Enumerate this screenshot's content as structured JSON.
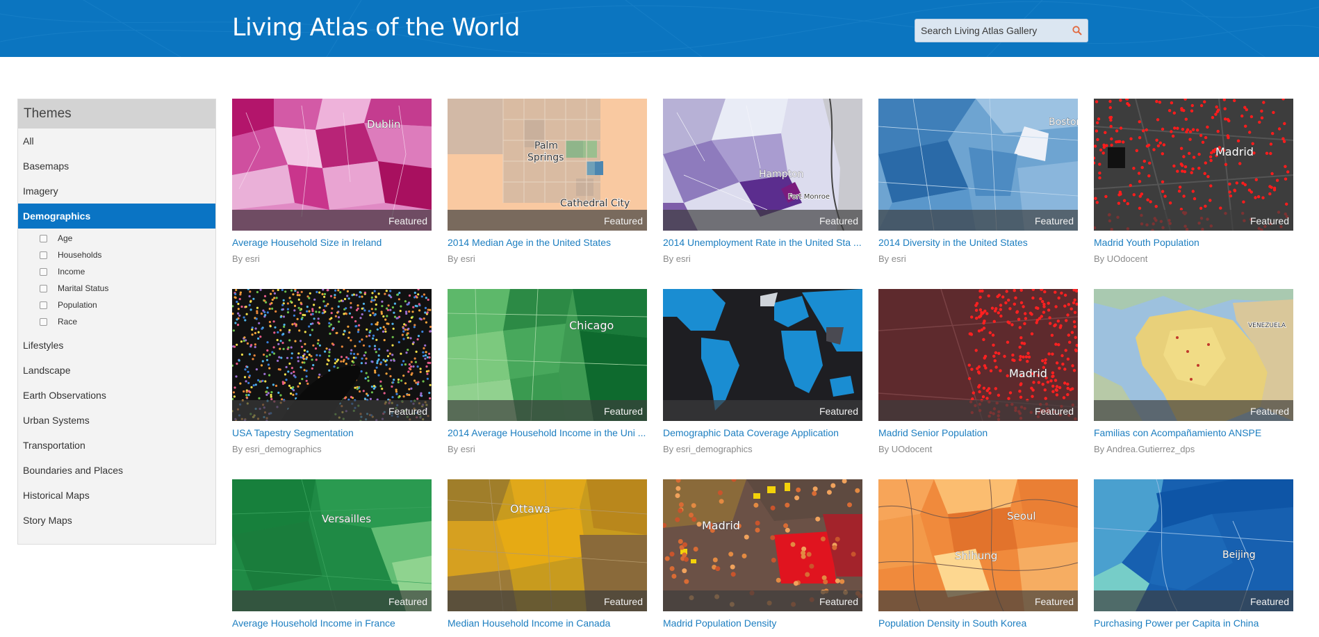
{
  "header": {
    "title": "Living Atlas of the World",
    "search_placeholder": "Search Living Atlas Gallery",
    "search_icon": "search-icon",
    "background_color": "#0b75c0"
  },
  "sidebar": {
    "title": "Themes",
    "items_before": [
      {
        "label": "All"
      },
      {
        "label": "Basemaps"
      },
      {
        "label": "Imagery"
      },
      {
        "label": "Demographics",
        "active": true
      }
    ],
    "sub_items": [
      {
        "label": "Age"
      },
      {
        "label": "Households"
      },
      {
        "label": "Income"
      },
      {
        "label": "Marital Status"
      },
      {
        "label": "Population"
      },
      {
        "label": "Race"
      }
    ],
    "items_after": [
      {
        "label": "Lifestyles"
      },
      {
        "label": "Landscape"
      },
      {
        "label": "Earth Observations"
      },
      {
        "label": "Urban Systems"
      },
      {
        "label": "Transportation"
      },
      {
        "label": "Boundaries and Places"
      },
      {
        "label": "Historical Maps"
      },
      {
        "label": "Story Maps"
      }
    ],
    "active_color": "#0a74c4"
  },
  "gallery": {
    "featured_label": "Featured",
    "by_prefix": "By",
    "items": [
      {
        "title": "Average Household Size in Ireland",
        "author": "esri",
        "map_labels": [
          "Dublin"
        ]
      },
      {
        "title": "2014 Median Age in the United States",
        "author": "esri",
        "map_labels": [
          "Palm",
          "Springs",
          "Cathedral City"
        ]
      },
      {
        "title": "2014 Unemployment Rate in the United Sta ...",
        "author": "esri",
        "map_labels": [
          "Hampton",
          "Fort Monroe"
        ]
      },
      {
        "title": "2014 Diversity in the United States",
        "author": "esri",
        "map_labels": [
          "Boston"
        ]
      },
      {
        "title": "Madrid Youth Population",
        "author": "UOdocent",
        "map_labels": [
          "Madrid"
        ]
      },
      {
        "title": "USA Tapestry Segmentation",
        "author": "esri_demographics",
        "map_labels": []
      },
      {
        "title": "2014 Average Household Income in the Uni ...",
        "author": "esri",
        "map_labels": [
          "Chicago"
        ]
      },
      {
        "title": "Demographic Data Coverage Application",
        "author": "esri_demographics",
        "map_labels": []
      },
      {
        "title": "Madrid Senior Population",
        "author": "UOdocent",
        "map_labels": [
          "Madrid"
        ]
      },
      {
        "title": "Familias con Acompañamiento ANSPE",
        "author": "Andrea.Gutierrez_dps",
        "map_labels": [
          "VENEZUELA"
        ]
      },
      {
        "title": "Average Household Income in France",
        "author": "",
        "map_labels": [
          "Versailles"
        ]
      },
      {
        "title": "Median Household Income in Canada",
        "author": "",
        "map_labels": [
          "Ottawa"
        ]
      },
      {
        "title": "Madrid Population Density",
        "author": "",
        "map_labels": [
          "Madrid"
        ]
      },
      {
        "title": "Population Density in South Korea",
        "author": "",
        "map_labels": [
          "Seoul",
          "Shihung"
        ]
      },
      {
        "title": "Purchasing Power per Capita in China",
        "author": "",
        "map_labels": [
          "Beijing"
        ]
      }
    ]
  }
}
